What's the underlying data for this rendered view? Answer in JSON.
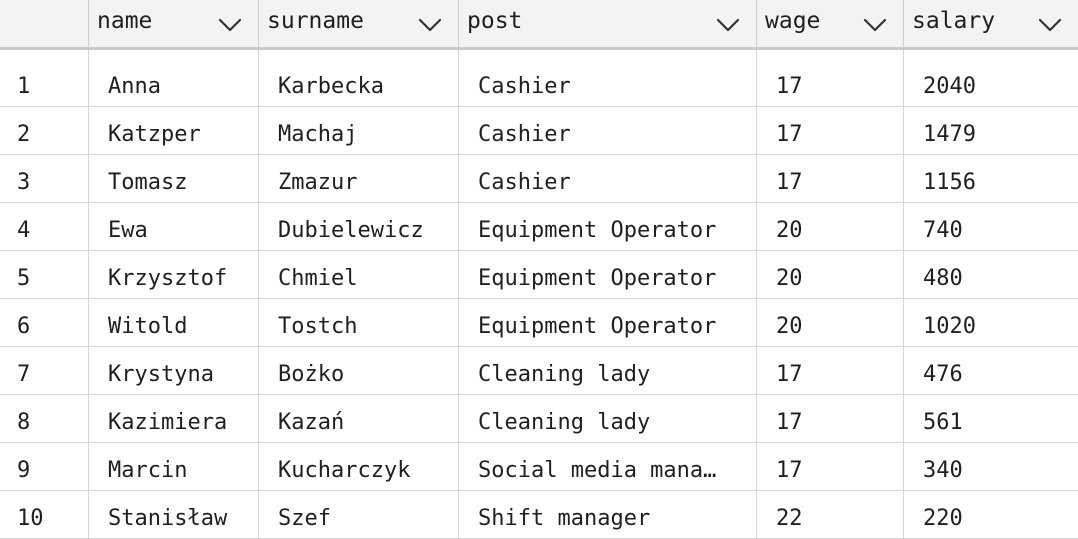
{
  "table": {
    "columns": [
      {
        "label": "",
        "sortable": false
      },
      {
        "label": "name",
        "sortable": true
      },
      {
        "label": "surname",
        "sortable": true
      },
      {
        "label": "post",
        "sortable": true
      },
      {
        "label": "wage",
        "sortable": true
      },
      {
        "label": "salary",
        "sortable": true
      }
    ],
    "rows": [
      {
        "index": "1",
        "name": "Anna",
        "surname": "Karbecka",
        "post": "Cashier",
        "wage": "17",
        "salary": "2040"
      },
      {
        "index": "2",
        "name": "Katzper",
        "surname": "Machaj",
        "post": "Cashier",
        "wage": "17",
        "salary": "1479"
      },
      {
        "index": "3",
        "name": "Tomasz",
        "surname": "Zmazur",
        "post": "Cashier",
        "wage": "17",
        "salary": "1156"
      },
      {
        "index": "4",
        "name": "Ewa",
        "surname": "Dubielewicz",
        "post": "Equipment Operator",
        "wage": "20",
        "salary": "740"
      },
      {
        "index": "5",
        "name": "Krzysztof",
        "surname": "Chmiel",
        "post": "Equipment Operator",
        "wage": "20",
        "salary": "480"
      },
      {
        "index": "6",
        "name": "Witold",
        "surname": "Tostch",
        "post": "Equipment Operator",
        "wage": "20",
        "salary": "1020"
      },
      {
        "index": "7",
        "name": "Krystyna",
        "surname": "Bożko",
        "post": "Cleaning lady",
        "wage": "17",
        "salary": "476"
      },
      {
        "index": "8",
        "name": "Kazimiera",
        "surname": "Kazań",
        "post": "Cleaning lady",
        "wage": "17",
        "salary": "561"
      },
      {
        "index": "9",
        "name": "Marcin",
        "surname": "Kucharczyk",
        "post": "Social media mana…",
        "wage": "17",
        "salary": "340"
      },
      {
        "index": "10",
        "name": "Stanisław",
        "surname": "Szef",
        "post": "Shift manager",
        "wage": "22",
        "salary": "220"
      }
    ]
  },
  "icons": {
    "sort": "chevron-down-icon"
  },
  "colors": {
    "header_bg": "#f3f3f3",
    "grid_line": "#d6d6d6",
    "header_border": "#c9c9c9",
    "text": "#1f1f1f"
  }
}
